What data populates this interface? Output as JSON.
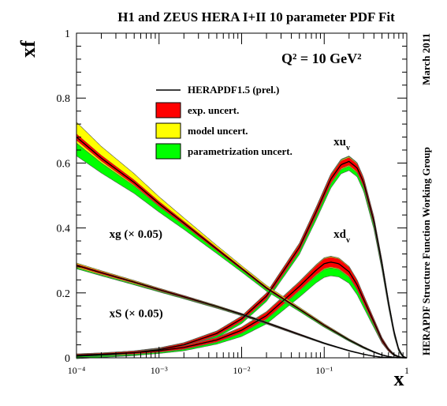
{
  "chart_data": {
    "type": "line",
    "title": "H1 and ZEUS HERA I+II 10 parameter PDF Fit",
    "annotation_q2": "Q² = 10 GeV²",
    "xlabel": "x",
    "ylabel": "xf",
    "xscale": "log",
    "xlim": [
      0.0001,
      1
    ],
    "ylim": [
      0,
      1
    ],
    "xticks": [
      {
        "value": 0.0001,
        "label": "10⁻⁴"
      },
      {
        "value": 0.001,
        "label": "10⁻³"
      },
      {
        "value": 0.01,
        "label": "10⁻²"
      },
      {
        "value": 0.1,
        "label": "10⁻¹"
      },
      {
        "value": 1,
        "label": "1"
      }
    ],
    "yticks": [
      {
        "value": 0,
        "label": "0"
      },
      {
        "value": 0.2,
        "label": "0.2"
      },
      {
        "value": 0.4,
        "label": "0.4"
      },
      {
        "value": 0.6,
        "label": "0.6"
      },
      {
        "value": 0.8,
        "label": "0.8"
      },
      {
        "value": 1,
        "label": "1"
      }
    ],
    "legend": {
      "placement": "top-center",
      "entries": [
        {
          "label": "HERAPDF1.5 (prel.)",
          "kind": "line",
          "color": "#000000"
        },
        {
          "label": "exp. uncert.",
          "kind": "band",
          "color": "#ff0000"
        },
        {
          "label": "model uncert.",
          "kind": "band",
          "color": "#ffff00"
        },
        {
          "label": "parametrization uncert.",
          "kind": "band",
          "color": "#00ff00"
        }
      ]
    },
    "colors": {
      "central": "#000000",
      "exp": "#ff0000",
      "model": "#ffff00",
      "param": "#00ff00",
      "outline": "#555555"
    },
    "side_labels": {
      "right_top": "March 2011",
      "right_bottom": "HERAPDF Structure Function Working Group"
    },
    "series": [
      {
        "name": "xu_v",
        "label_main": "xu",
        "label_sub": "v",
        "x": [
          0.0001,
          0.0002,
          0.0005,
          0.001,
          0.002,
          0.005,
          0.01,
          0.02,
          0.05,
          0.08,
          0.12,
          0.16,
          0.2,
          0.25,
          0.3,
          0.4,
          0.5,
          0.6,
          0.7,
          0.8,
          0.9,
          1.0
        ],
        "y": [
          0.005,
          0.009,
          0.016,
          0.025,
          0.04,
          0.075,
          0.12,
          0.19,
          0.34,
          0.45,
          0.55,
          0.595,
          0.605,
          0.585,
          0.54,
          0.42,
          0.29,
          0.17,
          0.08,
          0.025,
          0.004,
          0.0
        ],
        "exp_unc": [
          0.003,
          0.003,
          0.004,
          0.004,
          0.005,
          0.006,
          0.007,
          0.008,
          0.01,
          0.011,
          0.012,
          0.012,
          0.012,
          0.012,
          0.012,
          0.011,
          0.009,
          0.007,
          0.005,
          0.003,
          0.001,
          0.0
        ],
        "model_unc": [
          0.004,
          0.004,
          0.005,
          0.005,
          0.006,
          0.007,
          0.008,
          0.009,
          0.012,
          0.013,
          0.014,
          0.014,
          0.014,
          0.014,
          0.014,
          0.013,
          0.011,
          0.008,
          0.006,
          0.004,
          0.002,
          0.0
        ],
        "param_unc": [
          0.006,
          0.006,
          0.007,
          0.007,
          0.008,
          0.009,
          0.01,
          0.011,
          0.015,
          0.018,
          0.02,
          0.021,
          0.021,
          0.02,
          0.019,
          0.017,
          0.014,
          0.011,
          0.008,
          0.005,
          0.002,
          0.0
        ]
      },
      {
        "name": "xd_v",
        "label_main": "xd",
        "label_sub": "v",
        "x": [
          0.0001,
          0.0002,
          0.0005,
          0.001,
          0.002,
          0.005,
          0.01,
          0.02,
          0.05,
          0.08,
          0.1,
          0.12,
          0.15,
          0.2,
          0.25,
          0.3,
          0.4,
          0.5,
          0.6,
          0.7,
          0.8,
          0.9,
          1.0
        ],
        "y": [
          0.008,
          0.011,
          0.016,
          0.022,
          0.032,
          0.055,
          0.085,
          0.13,
          0.22,
          0.27,
          0.29,
          0.295,
          0.29,
          0.265,
          0.225,
          0.18,
          0.11,
          0.055,
          0.025,
          0.009,
          0.003,
          0.0005,
          0.0
        ],
        "exp_unc": [
          0.003,
          0.003,
          0.004,
          0.004,
          0.005,
          0.006,
          0.008,
          0.01,
          0.012,
          0.014,
          0.015,
          0.015,
          0.015,
          0.014,
          0.013,
          0.011,
          0.008,
          0.006,
          0.004,
          0.002,
          0.001,
          0.0003,
          0.0
        ],
        "model_unc": [
          0.004,
          0.004,
          0.005,
          0.005,
          0.006,
          0.007,
          0.009,
          0.011,
          0.013,
          0.015,
          0.016,
          0.016,
          0.016,
          0.015,
          0.014,
          0.012,
          0.009,
          0.007,
          0.005,
          0.003,
          0.002,
          0.0005,
          0.0
        ],
        "param_unc": [
          0.005,
          0.005,
          0.006,
          0.006,
          0.007,
          0.009,
          0.011,
          0.014,
          0.018,
          0.02,
          0.021,
          0.021,
          0.02,
          0.018,
          0.017,
          0.015,
          0.012,
          0.009,
          0.006,
          0.004,
          0.002,
          0.0007,
          0.0
        ],
        "param_shift": [
          0,
          0,
          0,
          0,
          0,
          0,
          -0.003,
          -0.005,
          -0.008,
          -0.01,
          -0.012,
          -0.012,
          -0.011,
          -0.008,
          -0.005,
          -0.003,
          0,
          0.003,
          0.004,
          0.003,
          0.001,
          0,
          0
        ]
      },
      {
        "name": "xg (×0.05)",
        "label_main": "xg (× 0.05)",
        "label_sub": "",
        "x": [
          0.0001,
          0.0002,
          0.0005,
          0.001,
          0.002,
          0.005,
          0.01,
          0.02,
          0.05,
          0.1,
          0.2,
          0.3,
          0.4,
          0.5,
          0.6,
          0.7,
          0.8,
          0.9,
          1.0
        ],
        "y": [
          0.68,
          0.615,
          0.54,
          0.475,
          0.415,
          0.335,
          0.275,
          0.215,
          0.15,
          0.1,
          0.055,
          0.032,
          0.018,
          0.009,
          0.004,
          0.0015,
          0.0005,
          0.0001,
          0.0
        ],
        "exp_unc": [
          0.01,
          0.009,
          0.008,
          0.007,
          0.006,
          0.005,
          0.004,
          0.004,
          0.003,
          0.003,
          0.002,
          0.002,
          0.001,
          0.001,
          0.0005,
          0.0003,
          0.0001,
          0.0,
          0.0
        ],
        "model_unc": [
          0.045,
          0.035,
          0.026,
          0.02,
          0.015,
          0.01,
          0.008,
          0.007,
          0.005,
          0.004,
          0.003,
          0.002,
          0.0015,
          0.001,
          0.0005,
          0.0003,
          0.0001,
          0.0,
          0.0
        ],
        "param_unc": [
          0.035,
          0.028,
          0.02,
          0.015,
          0.011,
          0.008,
          0.006,
          0.005,
          0.004,
          0.003,
          0.002,
          0.002,
          0.001,
          0.001,
          0.0005,
          0.0003,
          0.0001,
          0.0,
          0.0
        ],
        "model_up_bias": true
      },
      {
        "name": "xS (×0.05)",
        "label_main": "xS (× 0.05)",
        "label_sub": "",
        "x": [
          0.0001,
          0.0002,
          0.0005,
          0.001,
          0.002,
          0.005,
          0.01,
          0.02,
          0.05,
          0.1,
          0.2,
          0.3,
          0.4,
          0.5,
          0.6,
          0.7,
          0.8,
          0.9,
          1.0
        ],
        "y": [
          0.285,
          0.262,
          0.233,
          0.21,
          0.188,
          0.158,
          0.134,
          0.108,
          0.072,
          0.045,
          0.022,
          0.011,
          0.005,
          0.002,
          0.001,
          0.0004,
          0.0001,
          0.0,
          0.0
        ],
        "exp_unc": [
          0.004,
          0.004,
          0.003,
          0.003,
          0.003,
          0.002,
          0.002,
          0.002,
          0.002,
          0.001,
          0.001,
          0.0005,
          0.0003,
          0.0002,
          0.0001,
          0.0,
          0.0,
          0.0,
          0.0
        ],
        "model_unc": [
          0.008,
          0.007,
          0.006,
          0.005,
          0.004,
          0.004,
          0.003,
          0.003,
          0.002,
          0.002,
          0.001,
          0.001,
          0.0005,
          0.0003,
          0.0001,
          0.0,
          0.0,
          0.0,
          0.0
        ],
        "param_unc": [
          0.006,
          0.005,
          0.005,
          0.004,
          0.004,
          0.003,
          0.003,
          0.002,
          0.002,
          0.001,
          0.001,
          0.0005,
          0.0003,
          0.0002,
          0.0001,
          0.0,
          0.0,
          0.0,
          0.0
        ]
      }
    ],
    "series_label_positions": [
      {
        "series": "xu_v",
        "x": 0.13,
        "y": 0.655
      },
      {
        "series": "xd_v",
        "x": 0.13,
        "y": 0.37
      },
      {
        "series": "xg (×0.05)",
        "x": 0.00025,
        "y": 0.37
      },
      {
        "series": "xS (×0.05)",
        "x": 0.00025,
        "y": 0.125
      }
    ]
  }
}
